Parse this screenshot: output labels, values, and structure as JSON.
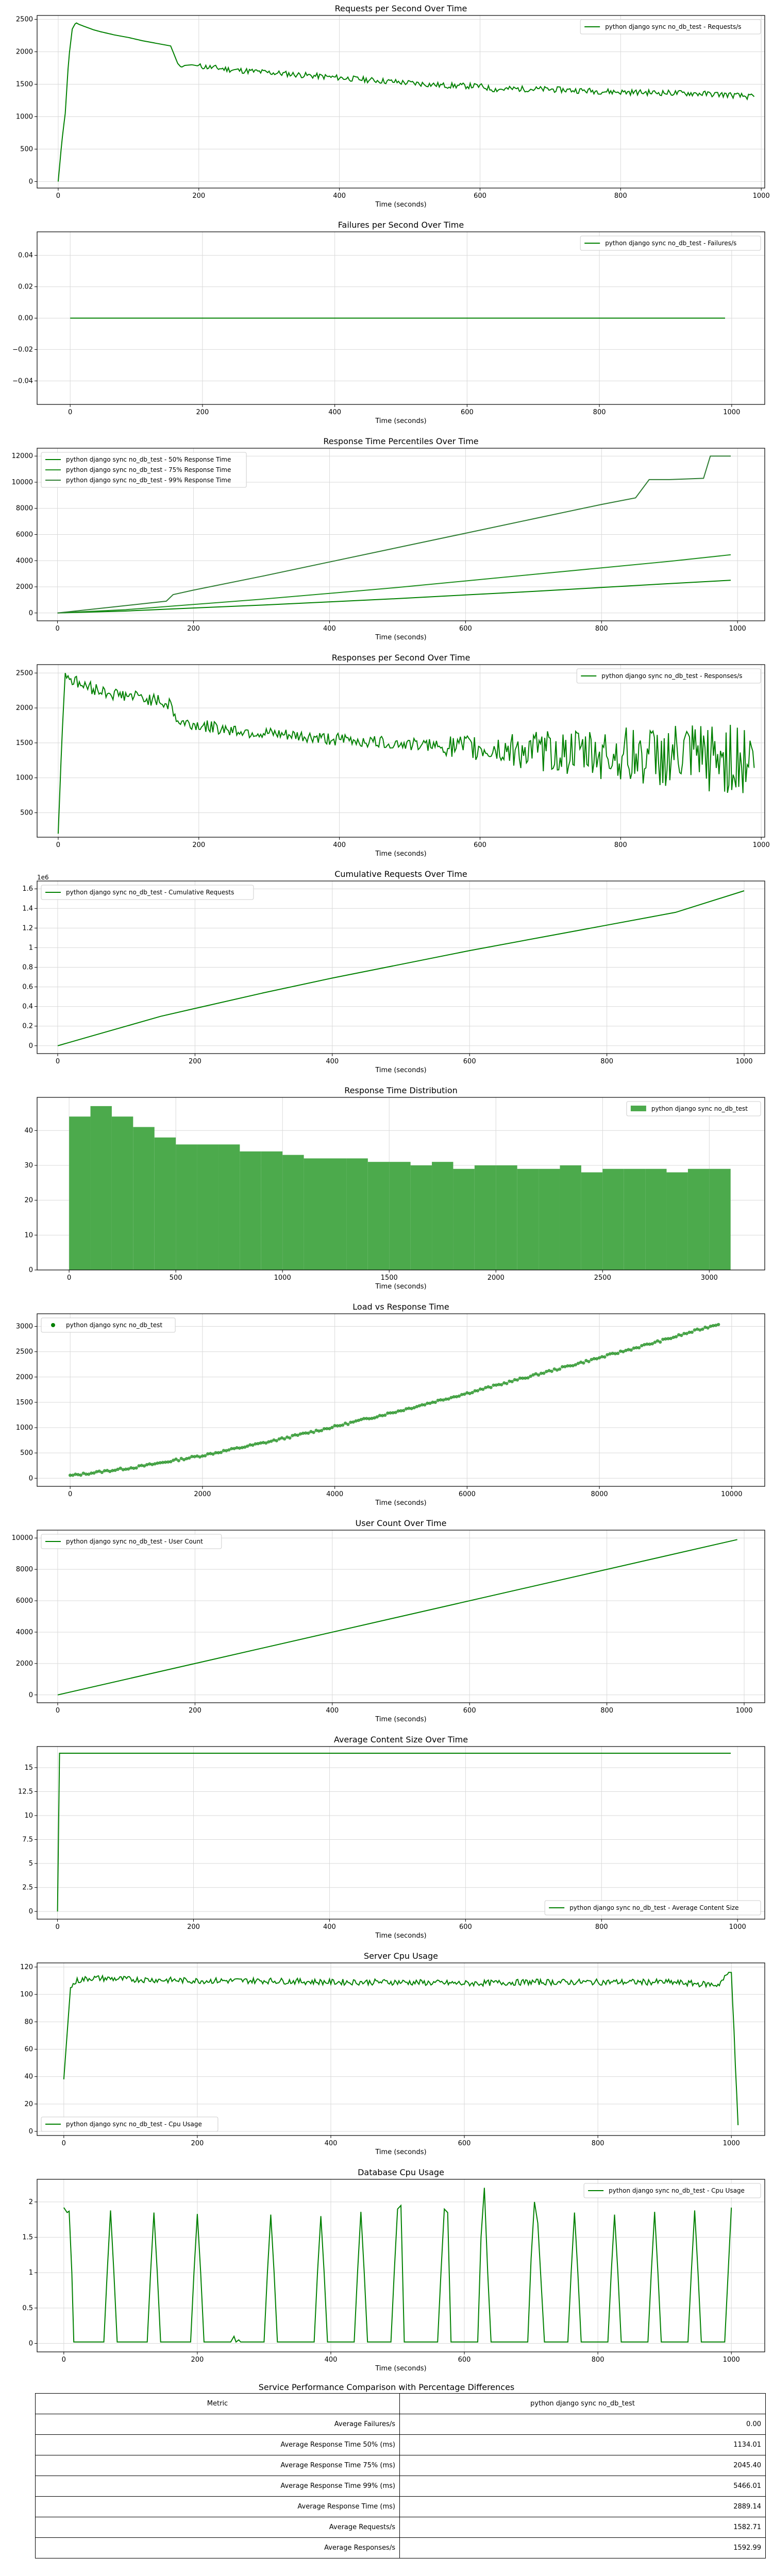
{
  "chart_data": [
    {
      "type": "line",
      "title": "Requests per Second Over Time",
      "xlabel": "Time (seconds)",
      "ylabel": "",
      "xlim": [
        -30,
        1005
      ],
      "ylim": [
        -100,
        2560
      ],
      "xticks": [
        0,
        200,
        400,
        600,
        800,
        1000
      ],
      "yticks": [
        0,
        500,
        1000,
        1500,
        2000,
        2500
      ],
      "legend": "top-right",
      "series": [
        {
          "name": "python django sync no_db_test - Requests/s",
          "x": [
            0,
            5,
            10,
            15,
            20,
            25,
            30,
            40,
            50,
            60,
            80,
            100,
            120,
            140,
            160,
            170,
            175,
            180,
            190,
            200,
            250,
            300,
            350,
            400,
            450,
            500,
            550,
            600,
            620,
            650,
            700,
            750,
            800,
            850,
            900,
            950,
            990
          ],
          "values": [
            0,
            600,
            1050,
            1900,
            2350,
            2450,
            2420,
            2380,
            2340,
            2310,
            2260,
            2220,
            2170,
            2130,
            2090,
            1820,
            1760,
            1790,
            1800,
            1780,
            1720,
            1680,
            1640,
            1600,
            1560,
            1520,
            1480,
            1470,
            1420,
            1430,
            1420,
            1400,
            1380,
            1370,
            1360,
            1340,
            1300
          ],
          "noise": 45,
          "noise_from": 200
        }
      ]
    },
    {
      "type": "line",
      "title": "Failures per Second Over Time",
      "xlabel": "Time (seconds)",
      "ylabel": "",
      "xlim": [
        -50,
        1050
      ],
      "ylim": [
        -0.055,
        0.055
      ],
      "xticks": [
        0,
        200,
        400,
        600,
        800,
        1000
      ],
      "yticks": [
        -0.04,
        -0.02,
        0.0,
        0.02,
        0.04
      ],
      "ytick_labels": [
        "−0.04",
        "−0.02",
        "0.00",
        "0.02",
        "0.04"
      ],
      "legend": "top-right",
      "series": [
        {
          "name": "python django sync no_db_test - Failures/s",
          "x": [
            0,
            990
          ],
          "values": [
            0,
            0
          ]
        }
      ]
    },
    {
      "type": "line",
      "title": "Response Time Percentiles Over Time",
      "xlabel": "Time (seconds)",
      "ylabel": "",
      "xlim": [
        -30,
        1040
      ],
      "ylim": [
        -600,
        12600
      ],
      "xticks": [
        0,
        200,
        400,
        600,
        800,
        1000
      ],
      "yticks": [
        0,
        2000,
        4000,
        6000,
        8000,
        10000,
        12000
      ],
      "legend": "top-left",
      "series": [
        {
          "name": "python django sync no_db_test - 50% Response Time",
          "x": [
            0,
            100,
            200,
            300,
            400,
            500,
            600,
            700,
            800,
            900,
            990
          ],
          "values": [
            0,
            150,
            380,
            600,
            850,
            1100,
            1380,
            1650,
            1950,
            2250,
            2500
          ]
        },
        {
          "name": "python django sync no_db_test - 75% Response Time",
          "x": [
            0,
            100,
            200,
            300,
            400,
            500,
            600,
            700,
            800,
            900,
            990
          ],
          "values": [
            0,
            250,
            650,
            1050,
            1500,
            1950,
            2450,
            2950,
            3450,
            3950,
            4450
          ]
        },
        {
          "name": "python django sync no_db_test - 99% Response Time",
          "x": [
            0,
            80,
            160,
            170,
            200,
            300,
            400,
            500,
            600,
            700,
            800,
            850,
            870,
            900,
            950,
            960,
            990
          ],
          "values": [
            0,
            450,
            900,
            1400,
            1750,
            2800,
            3900,
            5000,
            6100,
            7200,
            8300,
            8800,
            10200,
            10200,
            10300,
            12000,
            12000
          ]
        }
      ]
    },
    {
      "type": "line",
      "title": "Responses per Second Over Time",
      "xlabel": "Time (seconds)",
      "ylabel": "",
      "xlim": [
        -30,
        1005
      ],
      "ylim": [
        150,
        2620
      ],
      "xticks": [
        0,
        200,
        400,
        600,
        800,
        1000
      ],
      "yticks": [
        500,
        1000,
        1500,
        2000,
        2500
      ],
      "legend": "top-right",
      "series": [
        {
          "name": "python django sync no_db_test - Responses/s",
          "x": [
            0,
            5,
            10,
            20,
            40,
            80,
            120,
            160,
            170,
            200,
            300,
            400,
            500,
            600,
            700,
            750,
            800,
            850,
            900,
            950,
            990
          ],
          "values": [
            200,
            1500,
            2500,
            2400,
            2300,
            2200,
            2150,
            2050,
            1800,
            1750,
            1620,
            1550,
            1480,
            1420,
            1380,
            1360,
            1340,
            1320,
            1300,
            1290,
            1280
          ],
          "noise": 90,
          "noise_growth": 3.6
        }
      ]
    },
    {
      "type": "line",
      "title": "Cumulative Requests Over Time",
      "xlabel": "Time (seconds)",
      "ylabel": "",
      "offset_label": "1e6",
      "xlim": [
        -30,
        1030
      ],
      "ylim": [
        -0.08,
        1.68
      ],
      "xticks": [
        0,
        200,
        400,
        600,
        800,
        1000
      ],
      "yticks": [
        0.0,
        0.2,
        0.4,
        0.6,
        0.8,
        1.0,
        1.2,
        1.4,
        1.6
      ],
      "legend": "top-left",
      "series": [
        {
          "name": "python django sync no_db_test - Cumulative Requests",
          "x": [
            0,
            50,
            100,
            150,
            200,
            300,
            400,
            500,
            600,
            700,
            800,
            900,
            1000
          ],
          "values": [
            0,
            0.1,
            0.2,
            0.3,
            0.38,
            0.54,
            0.69,
            0.83,
            0.97,
            1.1,
            1.23,
            1.36,
            1.58
          ]
        }
      ]
    },
    {
      "type": "bar",
      "title": "Response Time Distribution",
      "xlabel": "Time (seconds)",
      "ylabel": "",
      "xlim": [
        -150,
        3260
      ],
      "ylim": [
        0,
        49.5
      ],
      "xticks": [
        0,
        500,
        1000,
        1500,
        2000,
        2500,
        3000
      ],
      "yticks": [
        0,
        10,
        20,
        30,
        40
      ],
      "legend": "top-right",
      "bin_edges": [
        0,
        100,
        200,
        300,
        400,
        500,
        600,
        700,
        800,
        900,
        1000,
        1100,
        1200,
        1300,
        1400,
        1500,
        1600,
        1700,
        1800,
        1900,
        2000,
        2100,
        2200,
        2300,
        2400,
        2500,
        2600,
        2700,
        2800,
        2900,
        3000,
        3100
      ],
      "series": [
        {
          "name": "python django sync no_db_test",
          "values": [
            44,
            47,
            44,
            41,
            38,
            36,
            36,
            36,
            34,
            34,
            33,
            32,
            32,
            32,
            31,
            31,
            30,
            31,
            29,
            30,
            30,
            29,
            29,
            30,
            28,
            29,
            29,
            29,
            28,
            29,
            29
          ]
        }
      ]
    },
    {
      "type": "scatter",
      "title": "Load vs Response Time",
      "xlabel": "Time (seconds)",
      "ylabel": "",
      "xlim": [
        -500,
        10500
      ],
      "ylim": [
        -160,
        3250
      ],
      "xticks": [
        0,
        2000,
        4000,
        6000,
        8000,
        10000
      ],
      "yticks": [
        0,
        500,
        1000,
        1500,
        2000,
        2500,
        3000
      ],
      "legend": "top-left",
      "series": [
        {
          "name": "python django sync no_db_test",
          "x": [
            0,
            1000,
            2000,
            3000,
            4000,
            5000,
            6000,
            7000,
            8000,
            9000,
            9800
          ],
          "values": [
            50,
            220,
            450,
            720,
            1020,
            1340,
            1680,
            2030,
            2380,
            2740,
            3050
          ]
        }
      ]
    },
    {
      "type": "line",
      "title": "User Count Over Time",
      "xlabel": "Time (seconds)",
      "ylabel": "",
      "xlim": [
        -30,
        1030
      ],
      "ylim": [
        -500,
        10500
      ],
      "xticks": [
        0,
        200,
        400,
        600,
        800,
        1000
      ],
      "yticks": [
        0,
        2000,
        4000,
        6000,
        8000,
        10000
      ],
      "legend": "top-left",
      "series": [
        {
          "name": "python django sync no_db_test - User Count",
          "x": [
            0,
            990
          ],
          "values": [
            0,
            9900
          ]
        }
      ]
    },
    {
      "type": "line",
      "title": "Average Content Size Over Time",
      "xlabel": "Time (seconds)",
      "ylabel": "",
      "xlim": [
        -30,
        1040
      ],
      "ylim": [
        -0.8,
        17.2
      ],
      "xticks": [
        0,
        200,
        400,
        600,
        800,
        1000
      ],
      "yticks": [
        0.0,
        2.5,
        5.0,
        7.5,
        10.0,
        12.5,
        15.0
      ],
      "legend": "bottom-right",
      "series": [
        {
          "name": "python django sync no_db_test - Average Content Size",
          "x": [
            0,
            3,
            990
          ],
          "values": [
            0,
            16.5,
            16.5
          ]
        }
      ]
    },
    {
      "type": "line",
      "title": "Server Cpu Usage",
      "xlabel": "Time (seconds)",
      "ylabel": "",
      "xlim": [
        -40,
        1050
      ],
      "ylim": [
        -3,
        123
      ],
      "xticks": [
        0,
        200,
        400,
        600,
        800,
        1000
      ],
      "yticks": [
        0,
        20,
        40,
        60,
        80,
        100,
        120
      ],
      "legend": "bottom-left",
      "series": [
        {
          "name": "python django sync no_db_test - Cpu Usage",
          "x": [
            0,
            10,
            20,
            40,
            100,
            200,
            300,
            400,
            500,
            600,
            700,
            800,
            900,
            980,
            990,
            1000,
            1005,
            1010
          ],
          "values": [
            38,
            105,
            110,
            112,
            111,
            110,
            110,
            109,
            109,
            108,
            109,
            109,
            109,
            107,
            112,
            118,
            60,
            3
          ],
          "noise": 2.2
        }
      ]
    },
    {
      "type": "line",
      "title": "Database Cpu Usage",
      "xlabel": "Time (seconds)",
      "ylabel": "",
      "xlim": [
        -40,
        1050
      ],
      "ylim": [
        -0.12,
        2.32
      ],
      "xticks": [
        0,
        200,
        400,
        600,
        800,
        1000
      ],
      "yticks": [
        0.0,
        0.5,
        1.0,
        1.5,
        2.0
      ],
      "legend": "top-right",
      "series": [
        {
          "name": "python django sync no_db_test - Cpu Usage",
          "x": [
            0,
            5,
            8,
            12,
            15,
            60,
            65,
            70,
            75,
            80,
            125,
            130,
            135,
            140,
            145,
            190,
            195,
            200,
            205,
            210,
            250,
            255,
            258,
            262,
            265,
            300,
            305,
            310,
            315,
            320,
            375,
            380,
            385,
            390,
            395,
            435,
            440,
            445,
            450,
            455,
            490,
            495,
            500,
            505,
            510,
            560,
            565,
            570,
            575,
            580,
            620,
            625,
            630,
            635,
            640,
            695,
            700,
            705,
            710,
            720,
            755,
            760,
            765,
            770,
            775,
            815,
            820,
            825,
            830,
            835,
            875,
            880,
            885,
            890,
            895,
            935,
            940,
            945,
            950,
            955,
            990,
            1000
          ],
          "values": [
            1.92,
            1.85,
            1.87,
            1.0,
            0.02,
            0.02,
            1.0,
            1.88,
            1.0,
            0.02,
            0.02,
            1.0,
            1.85,
            1.0,
            0.02,
            0.02,
            1.0,
            1.83,
            1.0,
            0.02,
            0.02,
            0.1,
            0.02,
            0.05,
            0.02,
            0.02,
            1.0,
            1.82,
            1.0,
            0.02,
            0.02,
            1.0,
            1.8,
            1.0,
            0.02,
            0.02,
            1.0,
            1.86,
            1.0,
            0.02,
            0.02,
            1.0,
            1.9,
            1.95,
            0.02,
            0.02,
            1.0,
            1.9,
            1.85,
            0.02,
            0.02,
            1.5,
            2.2,
            1.0,
            0.02,
            0.02,
            1.2,
            2.0,
            1.7,
            0.02,
            0.02,
            1.0,
            1.85,
            1.0,
            0.02,
            0.02,
            1.0,
            1.82,
            1.0,
            0.02,
            0.02,
            1.0,
            1.86,
            1.0,
            0.02,
            0.02,
            1.0,
            1.88,
            1.0,
            0.02,
            0.02,
            1.92
          ]
        }
      ]
    }
  ],
  "table": {
    "title": "Service Performance Comparison with Percentage Differences",
    "headers": [
      "Metric",
      "python django sync no_db_test"
    ],
    "rows": [
      {
        "metric": "Average Failures/s",
        "value": "0.00"
      },
      {
        "metric": "Average Response Time 50% (ms)",
        "value": "1134.01"
      },
      {
        "metric": "Average Response Time 75% (ms)",
        "value": "2045.40"
      },
      {
        "metric": "Average Response Time 99% (ms)",
        "value": "5466.01"
      },
      {
        "metric": "Average Response Time (ms)",
        "value": "2889.14"
      },
      {
        "metric": "Average Requests/s",
        "value": "1582.71"
      },
      {
        "metric": "Average Responses/s",
        "value": "1592.99"
      }
    ]
  },
  "colors": {
    "line": "#008000",
    "lines": [
      "#008000",
      "#1f8f1f",
      "#2e7d32"
    ],
    "bar": "#4caa4c",
    "grid": "#d9d9d9",
    "axes": "#000000"
  }
}
